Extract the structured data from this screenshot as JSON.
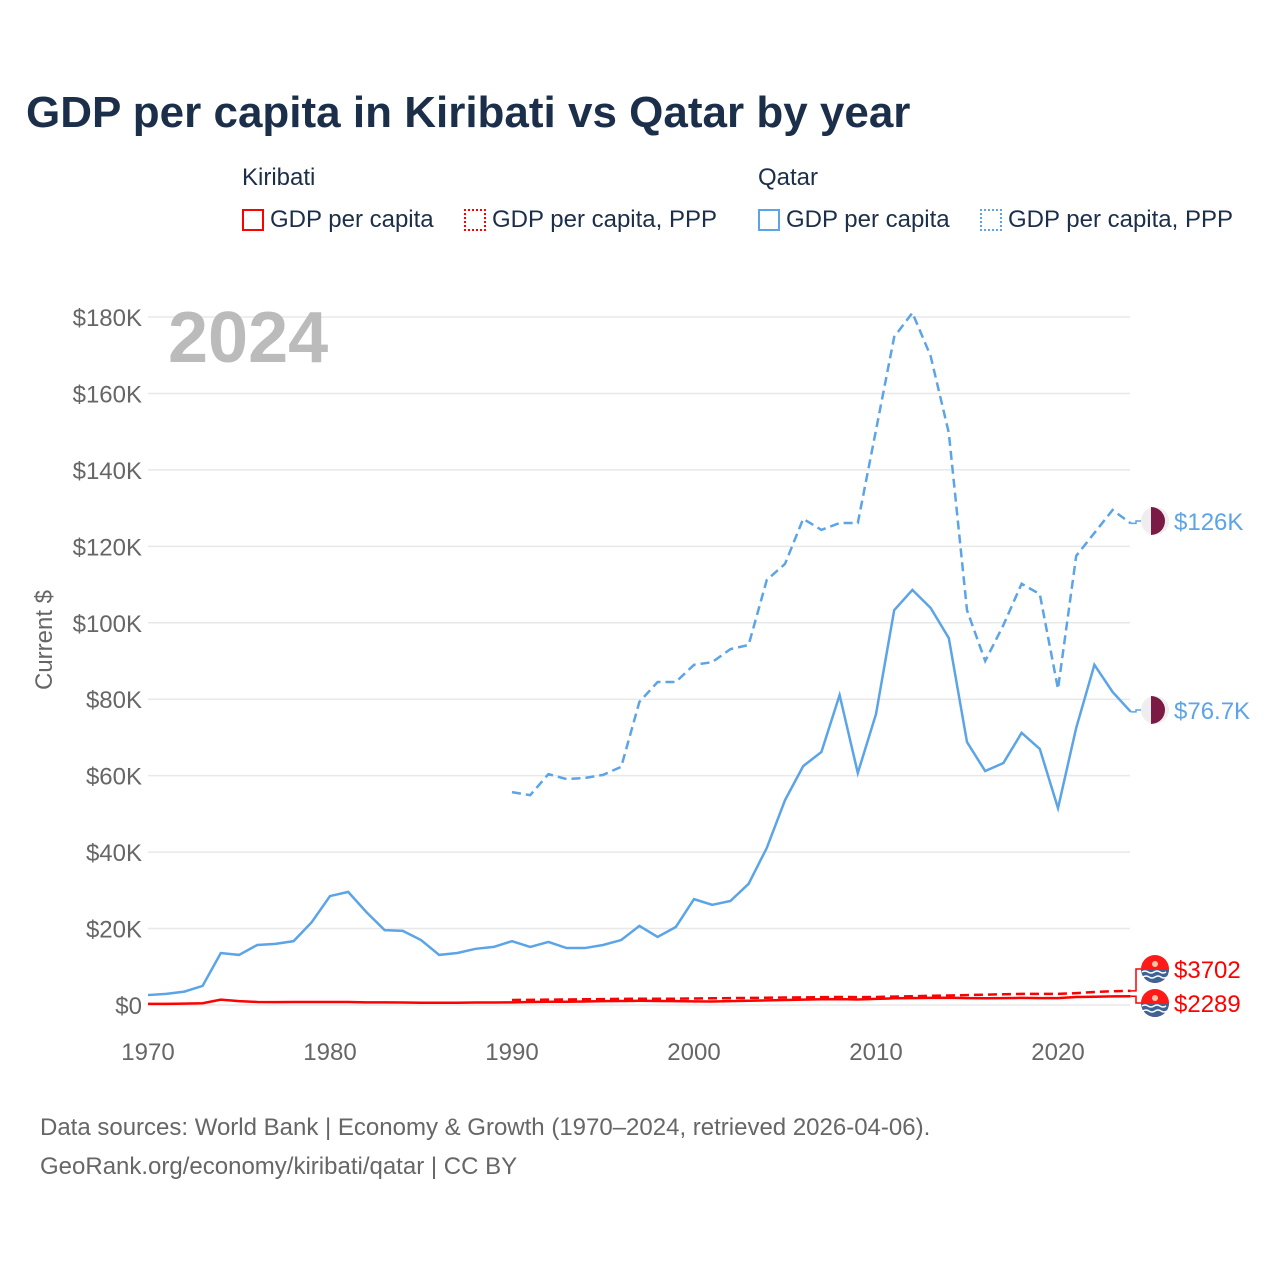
{
  "title": "GDP per capita in Kiribati vs Qatar by year",
  "legend": {
    "groups": [
      {
        "name": "Kiribati",
        "items": [
          "GDP per capita",
          "GDP per capita, PPP"
        ]
      },
      {
        "name": "Qatar",
        "items": [
          "GDP per capita",
          "GDP per capita, PPP"
        ]
      }
    ]
  },
  "source_line1": "Data sources: World Bank | Economy & Growth (1970–2024, retrieved 2026-04-06).",
  "source_line2": "GeoRank.org/economy/kiribati/qatar | CC BY",
  "colors": {
    "kiribati": "#ff0000",
    "qatar": "#5ba4e8",
    "grid": "#e8e8e8",
    "axis_text": "#666666",
    "year_watermark": "#bbbbbb",
    "qatar_flag": "#7a1a45",
    "kiribati_flag_blue": "#3d6494"
  },
  "chart_data": {
    "type": "line",
    "title": "GDP per capita in Kiribati vs Qatar by year",
    "xlabel": "",
    "ylabel": "Current $",
    "year_watermark": "2024",
    "xlim": [
      1970,
      2024
    ],
    "ylim": [
      0,
      180000
    ],
    "x_ticks": [
      1970,
      1980,
      1990,
      2000,
      2010,
      2020
    ],
    "y_ticks": [
      0,
      20000,
      40000,
      60000,
      80000,
      100000,
      120000,
      140000,
      160000,
      180000
    ],
    "y_tick_labels": [
      "$0",
      "$20K",
      "$40K",
      "$60K",
      "$80K",
      "$100K",
      "$120K",
      "$140K",
      "$160K",
      "$180K"
    ],
    "grid": true,
    "legend_position": "top",
    "series": [
      {
        "name": "Qatar GDP per capita",
        "country": "qatar",
        "style": "solid",
        "end_label": "$76.7K",
        "start": 1970,
        "values": [
          2600,
          2900,
          3500,
          5000,
          13600,
          13100,
          15700,
          16000,
          16700,
          21700,
          28500,
          29600,
          24300,
          19600,
          19400,
          17000,
          13100,
          13600,
          14700,
          15200,
          16700,
          15200,
          16500,
          14900,
          14900,
          15700,
          17000,
          20700,
          17800,
          20400,
          27700,
          26200,
          27200,
          31700,
          41100,
          53600,
          62500,
          66200,
          81100,
          60700,
          76100,
          103300,
          108600,
          103900,
          96000,
          68800,
          61200,
          63300,
          71200,
          67000,
          51500,
          72500,
          89000,
          81900,
          76700
        ]
      },
      {
        "name": "Qatar GDP per capita, PPP",
        "country": "qatar",
        "style": "dashed",
        "end_label": "$126K",
        "start": 1990,
        "values": [
          55700,
          54900,
          60400,
          59100,
          59400,
          60200,
          62300,
          79300,
          84500,
          84500,
          89000,
          89700,
          93100,
          94200,
          111200,
          115400,
          127200,
          124300,
          126100,
          126100,
          150400,
          174800,
          181100,
          169800,
          149700,
          103300,
          90000,
          99400,
          110200,
          107500,
          82700,
          117500,
          123500,
          129500,
          126000
        ]
      },
      {
        "name": "Kiribati GDP per capita",
        "country": "kiribati",
        "style": "solid",
        "end_label": "$2289",
        "start": 1970,
        "values": [
          300,
          300,
          350,
          450,
          1400,
          1000,
          800,
          750,
          800,
          800,
          800,
          800,
          700,
          700,
          650,
          600,
          600,
          600,
          650,
          650,
          700,
          800,
          850,
          850,
          900,
          1000,
          1050,
          1100,
          1050,
          1000,
          950,
          900,
          1000,
          1100,
          1200,
          1300,
          1400,
          1500,
          1550,
          1450,
          1600,
          1750,
          1800,
          1850,
          1900,
          1800,
          1750,
          1800,
          1850,
          1800,
          1800,
          2100,
          2150,
          2250,
          2289
        ]
      },
      {
        "name": "Kiribati GDP per capita, PPP",
        "country": "kiribati",
        "style": "dashed",
        "end_label": "$3702",
        "start": 1990,
        "values": [
          1300,
          1350,
          1400,
          1450,
          1500,
          1550,
          1600,
          1650,
          1650,
          1650,
          1700,
          1750,
          1800,
          1850,
          1900,
          1950,
          2000,
          2050,
          2100,
          2050,
          2100,
          2200,
          2300,
          2400,
          2500,
          2600,
          2700,
          2800,
          2900,
          2900,
          2900,
          3100,
          3400,
          3600,
          3702
        ]
      }
    ]
  }
}
